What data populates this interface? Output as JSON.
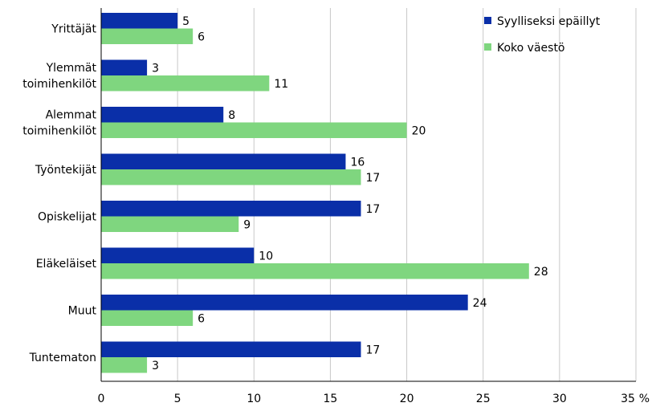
{
  "chart_data": {
    "type": "bar",
    "orientation": "horizontal",
    "categories": [
      [
        "Yrittäjät"
      ],
      [
        "Ylemmät",
        "toimihenkilöt"
      ],
      [
        "Alemmat",
        "toimihenkilöt"
      ],
      [
        "Työntekijät"
      ],
      [
        "Opiskelijat"
      ],
      [
        "Eläkeläiset"
      ],
      [
        "Muut"
      ],
      [
        "Tuntematon"
      ]
    ],
    "series": [
      {
        "name": "Syylliseksi epäillyt",
        "color": "#0a2fa8",
        "values": [
          5,
          3,
          8,
          16,
          17,
          10,
          24,
          17
        ]
      },
      {
        "name": "Koko väestö",
        "color": "#7fd67f",
        "values": [
          6,
          11,
          20,
          17,
          9,
          28,
          6,
          3
        ]
      }
    ],
    "xlim": [
      0,
      35
    ],
    "xticks": [
      "0",
      "5",
      "10",
      "15",
      "20",
      "25",
      "30",
      "35"
    ],
    "xunit": "%",
    "grid": true,
    "legend": "top-right"
  }
}
